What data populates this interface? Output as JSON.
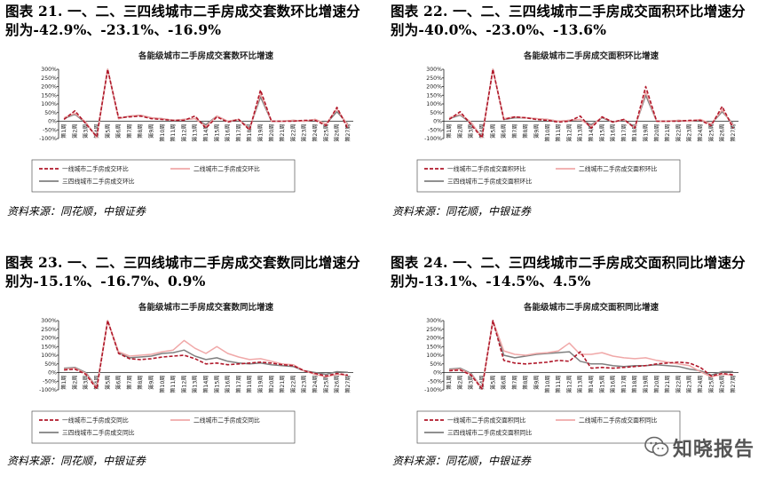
{
  "panels": [
    {
      "caption_line1": "图表 21. 一、二、三四线城市二手房成交套数环比增速分",
      "caption_line2": "别为-42.9%、-23.1%、-16.9%",
      "source": "资料来源：同花顺，中银证券",
      "chart_data": {
        "type": "line",
        "title": "各能级城市二手房成交套数环比增速",
        "categories": [
          "第1周",
          "第2周",
          "第3周",
          "第4周",
          "第5周",
          "第6周",
          "第7周",
          "第8周",
          "第9周",
          "第10周",
          "第11周",
          "第12周",
          "第13周",
          "第14周",
          "第15周",
          "第16周",
          "第17周",
          "第18周",
          "第19周",
          "第20周",
          "第21周",
          "第22周",
          "第23周",
          "第24周",
          "第25周",
          "第26周",
          "第27周"
        ],
        "ylim": [
          -100,
          300
        ],
        "yticks": [
          "300%",
          "250%",
          "200%",
          "150%",
          "100%",
          "50%",
          "0%",
          "-50%",
          "-100%"
        ],
        "legend_layout": "two-column-box",
        "series": [
          {
            "name": "一线城市二手房成交环比",
            "color": "#b0182a",
            "dash": true,
            "values": [
              10,
              60,
              -15,
              -90,
              300,
              20,
              25,
              30,
              15,
              10,
              5,
              5,
              30,
              -40,
              25,
              -5,
              10,
              -50,
              180,
              0,
              0,
              0,
              5,
              5,
              -25,
              80,
              -43
            ]
          },
          {
            "name": "二线城市二手房成交环比",
            "color": "#f0a8a8",
            "dash": false,
            "values": [
              20,
              45,
              -5,
              -95,
              300,
              15,
              30,
              35,
              20,
              15,
              5,
              10,
              15,
              -30,
              30,
              0,
              10,
              -45,
              160,
              0,
              0,
              5,
              0,
              10,
              -15,
              70,
              -23
            ]
          },
          {
            "name": "三四线城市二手房成交环比",
            "color": "#808080",
            "dash": false,
            "values": [
              15,
              40,
              -10,
              -90,
              300,
              15,
              30,
              35,
              20,
              15,
              5,
              10,
              15,
              -20,
              30,
              0,
              10,
              -40,
              140,
              0,
              0,
              5,
              0,
              10,
              -15,
              55,
              -17
            ]
          }
        ]
      }
    },
    {
      "caption_line1": "图表 22. 一、二、三四线城市二手房成交面积环比增速分",
      "caption_line2": "别为-40.0%、-23.0%、-13.6%",
      "source": "资料来源：同花顺，中银证券",
      "chart_data": {
        "type": "line",
        "title": "各能级城市二手房成交面积环比增速",
        "categories": [
          "第1周",
          "第2周",
          "第3周",
          "第4周",
          "第5周",
          "第6周",
          "第7周",
          "第8周",
          "第9周",
          "第10周",
          "第11周",
          "第12周",
          "第13周",
          "第14周",
          "第15周",
          "第16周",
          "第17周",
          "第18周",
          "第19周",
          "第20周",
          "第21周",
          "第22周",
          "第23周",
          "第24周",
          "第25周",
          "第26周",
          "第27周"
        ],
        "ylim": [
          -100,
          300
        ],
        "yticks": [
          "300%",
          "250%",
          "200%",
          "150%",
          "100%",
          "50%",
          "0%",
          "-50%",
          "-100%"
        ],
        "legend_layout": "two-column-box",
        "series": [
          {
            "name": "一线城市二手房成交面积环比",
            "color": "#b0182a",
            "dash": true,
            "values": [
              10,
              55,
              -20,
              -95,
              300,
              10,
              25,
              20,
              10,
              5,
              -5,
              0,
              30,
              -40,
              25,
              -5,
              10,
              -40,
              200,
              0,
              0,
              0,
              5,
              5,
              -25,
              85,
              -40
            ]
          },
          {
            "name": "二线城市二手房成交面积环比",
            "color": "#f0a8a8",
            "dash": false,
            "values": [
              20,
              40,
              -5,
              -95,
              300,
              15,
              25,
              20,
              15,
              10,
              0,
              5,
              10,
              -30,
              25,
              -5,
              10,
              -40,
              170,
              0,
              0,
              5,
              0,
              10,
              -15,
              65,
              -23
            ]
          },
          {
            "name": "三四线城市二手房成交面积环比",
            "color": "#808080",
            "dash": false,
            "values": [
              15,
              35,
              -10,
              -90,
              300,
              10,
              20,
              20,
              15,
              10,
              0,
              5,
              10,
              -20,
              20,
              -5,
              10,
              -35,
              150,
              0,
              0,
              5,
              0,
              5,
              -15,
              55,
              -14
            ]
          }
        ]
      }
    },
    {
      "caption_line1": "图表 23. 一、二、三四线城市二手房成交套数同比增速分",
      "caption_line2": "别为-15.1%、-16.7%、0.9%",
      "source": "资料来源：同花顺，中银证券",
      "chart_data": {
        "type": "line",
        "title": "各能级城市二手房成交套数同比增速",
        "categories": [
          "第1周",
          "第2周",
          "第3周",
          "第4周",
          "第5周",
          "第6周",
          "第7周",
          "第8周",
          "第9周",
          "第10周",
          "第11周",
          "第12周",
          "第13周",
          "第14周",
          "第15周",
          "第16周",
          "第17周",
          "第18周",
          "第19周",
          "第20周",
          "第21周",
          "第22周",
          "第23周",
          "第24周",
          "第25周",
          "第26周",
          "第27周"
        ],
        "ylim": [
          -100,
          300
        ],
        "yticks": [
          "300%",
          "250%",
          "200%",
          "150%",
          "100%",
          "50%",
          "0%",
          "-50%",
          "-100%"
        ],
        "legend_layout": "two-column-box",
        "series": [
          {
            "name": "一线城市二手房成交同比",
            "color": "#b0182a",
            "dash": true,
            "values": [
              15,
              20,
              -10,
              -95,
              300,
              110,
              80,
              75,
              80,
              90,
              95,
              100,
              80,
              50,
              55,
              45,
              50,
              55,
              60,
              55,
              45,
              40,
              10,
              -5,
              -20,
              -5,
              -15
            ]
          },
          {
            "name": "二线城市二手房成交同比",
            "color": "#f0a8a8",
            "dash": false,
            "values": [
              20,
              25,
              -5,
              -90,
              300,
              120,
              95,
              100,
              105,
              120,
              130,
              185,
              140,
              110,
              150,
              110,
              90,
              75,
              80,
              65,
              50,
              45,
              10,
              -10,
              -25,
              -10,
              -17
            ]
          },
          {
            "name": "三四线城市二手房成交同比",
            "color": "#808080",
            "dash": false,
            "values": [
              25,
              30,
              0,
              -85,
              300,
              115,
              85,
              90,
              95,
              110,
              115,
              130,
              95,
              75,
              85,
              65,
              55,
              50,
              55,
              45,
              40,
              35,
              10,
              0,
              -10,
              5,
              1
            ]
          }
        ]
      }
    },
    {
      "caption_line1": "图表 24. 一、二、三四线城市二手房成交面积同比增速分",
      "caption_line2": "别为-13.1%、-14.5%、4.5%",
      "source": "资料来源：同花顺，中银证券",
      "chart_data": {
        "type": "line",
        "title": "各能级城市二手房成交面积同比增速",
        "categories": [
          "第1周",
          "第2周",
          "第3周",
          "第4周",
          "第5周",
          "第6周",
          "第7周",
          "第8周",
          "第9周",
          "第10周",
          "第11周",
          "第12周",
          "第13周",
          "第14周",
          "第15周",
          "第16周",
          "第17周",
          "第18周",
          "第19周",
          "第20周",
          "第21周",
          "第22周",
          "第23周",
          "第24周",
          "第25周",
          "第26周",
          "第27周"
        ],
        "ylim": [
          -100,
          300
        ],
        "yticks": [
          "300%",
          "250%",
          "200%",
          "150%",
          "100%",
          "50%",
          "0%",
          "-50%",
          "-100%"
        ],
        "legend_layout": "two-column-box",
        "series": [
          {
            "name": "一线城市二手房成交面积同比",
            "color": "#b0182a",
            "dash": true,
            "values": [
              10,
              15,
              -15,
              -95,
              300,
              70,
              55,
              50,
              55,
              60,
              70,
              65,
              120,
              25,
              30,
              25,
              30,
              35,
              40,
              50,
              55,
              60,
              55,
              30,
              -20,
              -5,
              -13
            ]
          },
          {
            "name": "二线城市二手房成交面积同比",
            "color": "#f0a8a8",
            "dash": false,
            "values": [
              15,
              20,
              -10,
              -90,
              300,
              125,
              105,
              100,
              110,
              115,
              125,
              170,
              105,
              105,
              115,
              95,
              85,
              80,
              85,
              70,
              60,
              50,
              40,
              5,
              -25,
              -10,
              -15
            ]
          },
          {
            "name": "三四线城市二手房成交面积同比",
            "color": "#808080",
            "dash": false,
            "values": [
              20,
              25,
              -5,
              -90,
              300,
              100,
              85,
              95,
              105,
              110,
              115,
              120,
              65,
              50,
              50,
              40,
              35,
              40,
              40,
              45,
              40,
              35,
              20,
              10,
              -15,
              5,
              5
            ]
          }
        ]
      }
    }
  ],
  "watermark": {
    "text": "知晓报告",
    "icon": "wechat-icon"
  }
}
